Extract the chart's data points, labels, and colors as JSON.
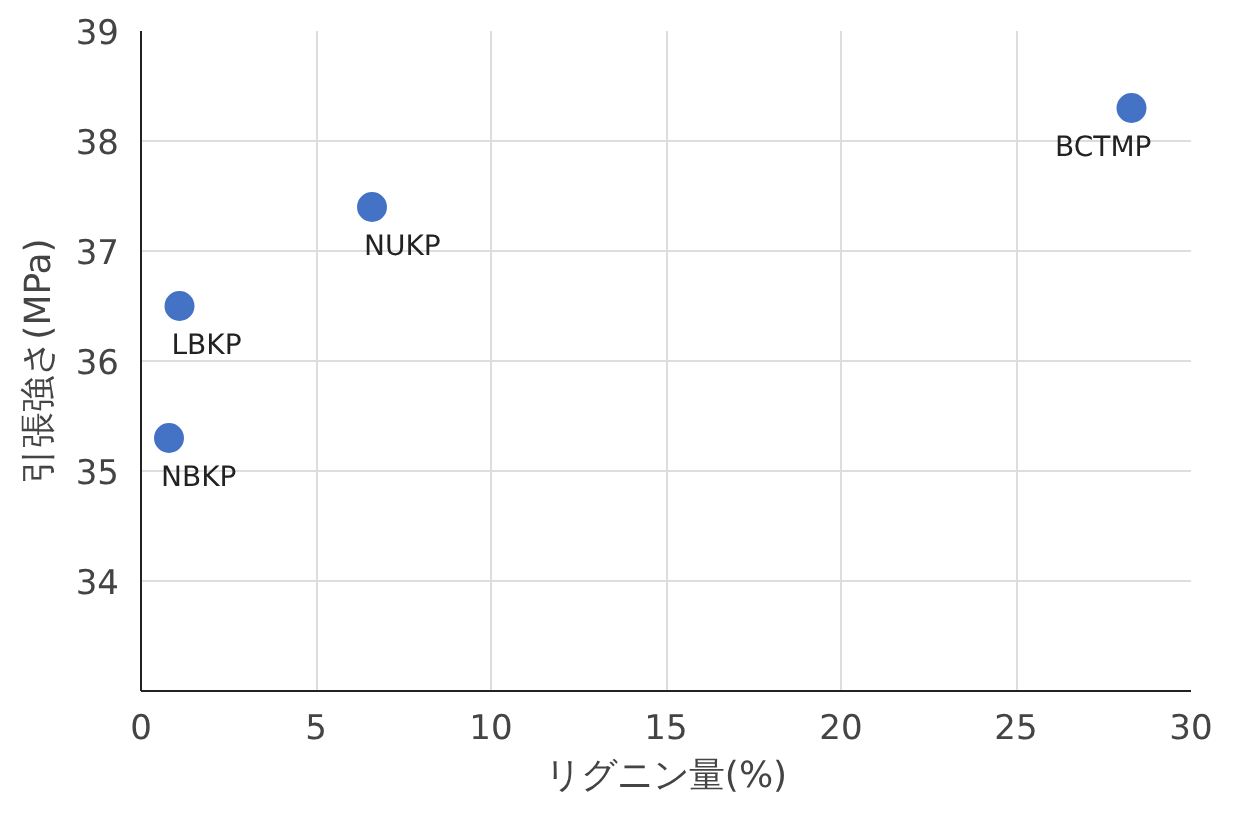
{
  "chart_data": {
    "type": "scatter",
    "xlabel": "リグニン量(%)",
    "ylabel": "引張強さ(MPa)",
    "x": [
      0.8,
      1.1,
      6.6,
      28.3
    ],
    "values": [
      35.3,
      36.5,
      37.4,
      38.3
    ],
    "color": "#4472c4",
    "marker": "circle",
    "grid": true,
    "xlim": [
      0,
      30
    ],
    "xticks": [
      0,
      5,
      10,
      15,
      20,
      25,
      30
    ],
    "ylim": [
      33,
      39
    ],
    "yticks": [
      34,
      35,
      36,
      37,
      38,
      39
    ],
    "annotations": [
      {
        "text": "NBKP",
        "x": 0.8,
        "y": 35.3
      },
      {
        "text": "LBKP",
        "x": 1.1,
        "y": 36.5
      },
      {
        "text": "NUKP",
        "x": 6.6,
        "y": 37.4
      },
      {
        "text": "BCTMP",
        "x": 28.3,
        "y": 38.3
      }
    ]
  }
}
